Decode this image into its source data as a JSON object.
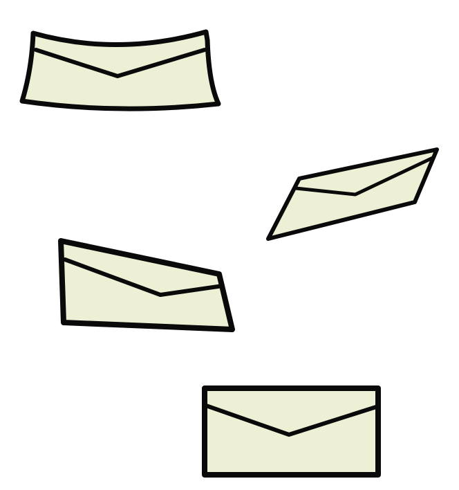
{
  "scene": {
    "background": "#ffffff",
    "paper_color": "#eef0d6",
    "outline_color": "#0a0a0a",
    "envelopes": [
      {
        "name": "envelope-curved",
        "icon": "envelope-icon"
      },
      {
        "name": "envelope-tilted-right",
        "icon": "envelope-icon"
      },
      {
        "name": "envelope-skewed-left",
        "icon": "envelope-icon"
      },
      {
        "name": "envelope-flat",
        "icon": "envelope-icon"
      }
    ]
  }
}
